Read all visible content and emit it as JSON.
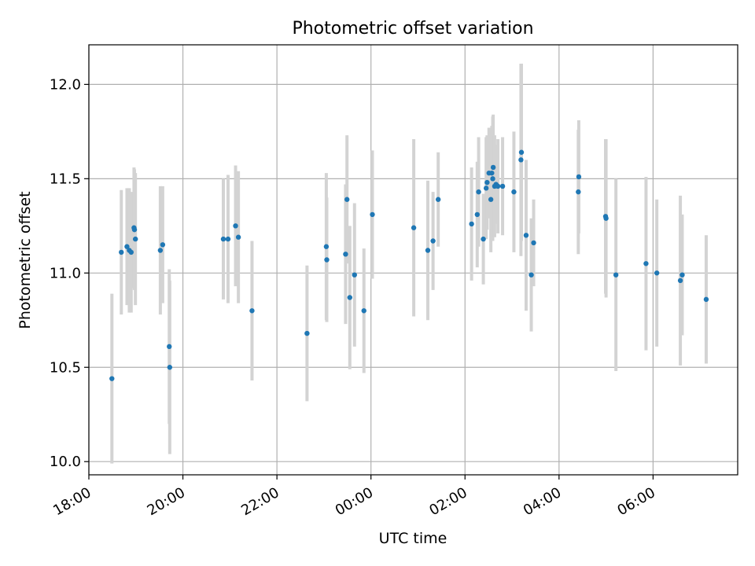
{
  "chart_data": {
    "type": "scatter",
    "title": "Photometric offset variation",
    "xlabel": "UTC time",
    "ylabel": "Photometric offset",
    "x_unit": "hours",
    "xlim": [
      -6.0,
      7.8
    ],
    "ylim": [
      9.93,
      12.21
    ],
    "x_ticks": [
      -6,
      -4,
      -2,
      0,
      2,
      4,
      6
    ],
    "x_tick_labels": [
      "18:00",
      "20:00",
      "22:00",
      "00:00",
      "02:00",
      "04:00",
      "06:00"
    ],
    "y_ticks": [
      10.0,
      10.5,
      11.0,
      11.5,
      12.0
    ],
    "y_tick_labels": [
      "10.0",
      "10.5",
      "11.0",
      "11.5",
      "12.0"
    ],
    "grid": true,
    "point_color": "#1f77b4",
    "errorbar_color": "#d3d3d3",
    "points": [
      {
        "x": -5.51,
        "y": 10.44,
        "err": 0.45
      },
      {
        "x": -5.31,
        "y": 11.11,
        "err": 0.33
      },
      {
        "x": -5.19,
        "y": 11.14,
        "err": 0.31
      },
      {
        "x": -5.14,
        "y": 11.12,
        "err": 0.33
      },
      {
        "x": -5.1,
        "y": 11.11,
        "err": 0.32
      },
      {
        "x": -5.04,
        "y": 11.24,
        "err": 0.32
      },
      {
        "x": -5.03,
        "y": 11.23,
        "err": 0.32
      },
      {
        "x": -5.01,
        "y": 11.18,
        "err": 0.35
      },
      {
        "x": -4.48,
        "y": 11.12,
        "err": 0.34
      },
      {
        "x": -4.43,
        "y": 11.15,
        "err": 0.31
      },
      {
        "x": -4.29,
        "y": 10.61,
        "err": 0.41
      },
      {
        "x": -4.28,
        "y": 10.5,
        "err": 0.46
      },
      {
        "x": -3.14,
        "y": 11.18,
        "err": 0.32
      },
      {
        "x": -3.04,
        "y": 11.18,
        "err": 0.34
      },
      {
        "x": -2.88,
        "y": 11.25,
        "err": 0.32
      },
      {
        "x": -2.82,
        "y": 11.19,
        "err": 0.35
      },
      {
        "x": -2.53,
        "y": 10.8,
        "err": 0.37
      },
      {
        "x": -1.36,
        "y": 10.68,
        "err": 0.36
      },
      {
        "x": -0.95,
        "y": 11.14,
        "err": 0.39
      },
      {
        "x": -0.94,
        "y": 11.07,
        "err": 0.33
      },
      {
        "x": -0.54,
        "y": 11.1,
        "err": 0.37
      },
      {
        "x": -0.51,
        "y": 11.39,
        "err": 0.34
      },
      {
        "x": -0.45,
        "y": 10.87,
        "err": 0.38
      },
      {
        "x": -0.35,
        "y": 10.99,
        "err": 0.38
      },
      {
        "x": -0.15,
        "y": 10.8,
        "err": 0.33
      },
      {
        "x": 0.03,
        "y": 11.31,
        "err": 0.34
      },
      {
        "x": 0.91,
        "y": 11.24,
        "err": 0.47
      },
      {
        "x": 1.21,
        "y": 11.12,
        "err": 0.37
      },
      {
        "x": 1.32,
        "y": 11.17,
        "err": 0.26
      },
      {
        "x": 1.43,
        "y": 11.39,
        "err": 0.25
      },
      {
        "x": 2.14,
        "y": 11.26,
        "err": 0.3
      },
      {
        "x": 2.26,
        "y": 11.31,
        "err": 0.28
      },
      {
        "x": 2.29,
        "y": 11.43,
        "err": 0.29
      },
      {
        "x": 2.39,
        "y": 11.18,
        "err": 0.24
      },
      {
        "x": 2.45,
        "y": 11.45,
        "err": 0.27
      },
      {
        "x": 2.47,
        "y": 11.48,
        "err": 0.25
      },
      {
        "x": 2.51,
        "y": 11.53,
        "err": 0.24
      },
      {
        "x": 2.55,
        "y": 11.39,
        "err": 0.28
      },
      {
        "x": 2.57,
        "y": 11.53,
        "err": 0.25
      },
      {
        "x": 2.59,
        "y": 11.5,
        "err": 0.33
      },
      {
        "x": 2.6,
        "y": 11.56,
        "err": 0.28
      },
      {
        "x": 2.63,
        "y": 11.46,
        "err": 0.27
      },
      {
        "x": 2.66,
        "y": 11.47,
        "err": 0.21
      },
      {
        "x": 2.7,
        "y": 11.46,
        "err": 0.25
      },
      {
        "x": 2.8,
        "y": 11.46,
        "err": 0.26
      },
      {
        "x": 3.04,
        "y": 11.43,
        "err": 0.32
      },
      {
        "x": 3.19,
        "y": 11.6,
        "err": 0.51
      },
      {
        "x": 3.2,
        "y": 11.64,
        "err": 0.47
      },
      {
        "x": 3.3,
        "y": 11.2,
        "err": 0.4
      },
      {
        "x": 3.41,
        "y": 10.99,
        "err": 0.3
      },
      {
        "x": 3.46,
        "y": 11.16,
        "err": 0.23
      },
      {
        "x": 4.41,
        "y": 11.43,
        "err": 0.33
      },
      {
        "x": 4.42,
        "y": 11.51,
        "err": 0.3
      },
      {
        "x": 4.99,
        "y": 11.3,
        "err": 0.41
      },
      {
        "x": 5.0,
        "y": 11.29,
        "err": 0.42
      },
      {
        "x": 5.21,
        "y": 10.99,
        "err": 0.51
      },
      {
        "x": 5.85,
        "y": 11.05,
        "err": 0.46
      },
      {
        "x": 6.08,
        "y": 11.0,
        "err": 0.39
      },
      {
        "x": 6.58,
        "y": 10.96,
        "err": 0.45
      },
      {
        "x": 6.62,
        "y": 10.99,
        "err": 0.32
      },
      {
        "x": 7.13,
        "y": 10.86,
        "err": 0.34
      }
    ]
  }
}
